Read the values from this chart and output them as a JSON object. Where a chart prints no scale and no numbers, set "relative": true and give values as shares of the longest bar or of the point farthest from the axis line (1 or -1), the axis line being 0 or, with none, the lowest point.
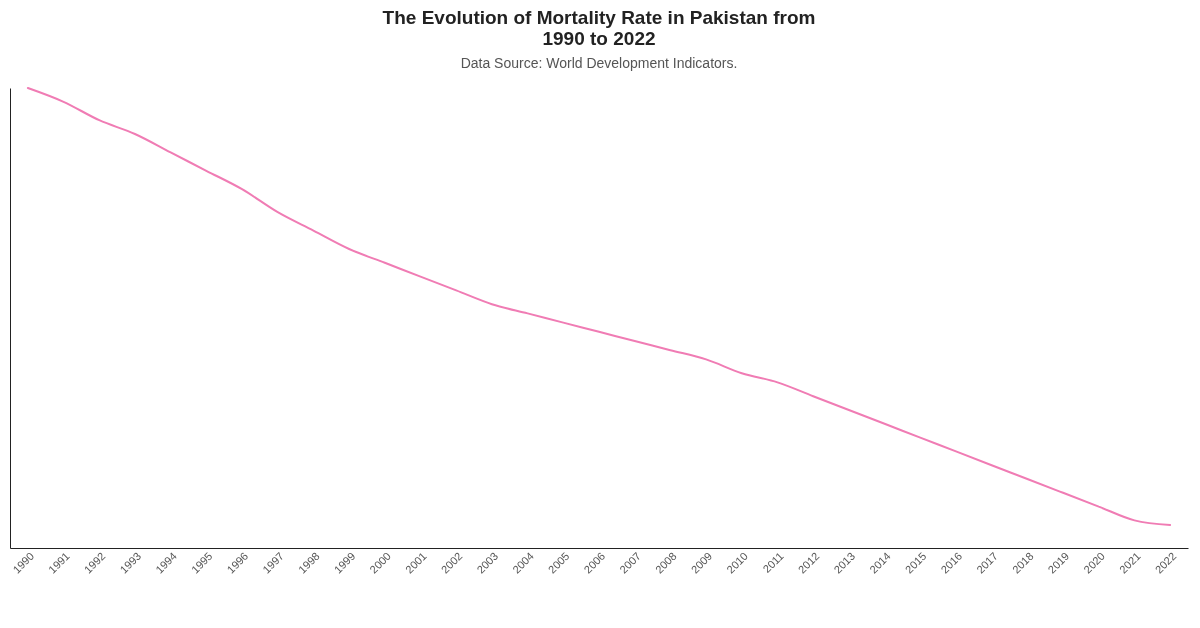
{
  "chart_data": {
    "type": "line",
    "title": "The Evolution of Mortality Rate in Pakistan from 1990 to 2022",
    "subtitle": "Data Source: World Development Indicators.",
    "relative": true,
    "categories": [
      "1990",
      "1991",
      "1992",
      "1993",
      "1994",
      "1995",
      "1996",
      "1997",
      "1998",
      "1999",
      "2000",
      "2001",
      "2002",
      "2003",
      "2004",
      "2005",
      "2006",
      "2007",
      "2008",
      "2009",
      "2010",
      "2011",
      "2012",
      "2013",
      "2014",
      "2015",
      "2016",
      "2017",
      "2018",
      "2019",
      "2020",
      "2021",
      "2022"
    ],
    "series": [
      {
        "color": "#f07cb4",
        "values": [
          1,
          0.97,
          0.93,
          0.9,
          0.86,
          0.82,
          0.78,
          0.73,
          0.69,
          0.65,
          0.62,
          0.59,
          0.56,
          0.53,
          0.51,
          0.49,
          0.47,
          0.45,
          0.43,
          0.41,
          0.38,
          0.36,
          0.33,
          0.3,
          0.27,
          0.24,
          0.21,
          0.18,
          0.15,
          0.12,
          0.09,
          0.06,
          0.05
        ]
      }
    ],
    "grid": false,
    "legend": false,
    "marker": "none",
    "line_style": "solid"
  }
}
